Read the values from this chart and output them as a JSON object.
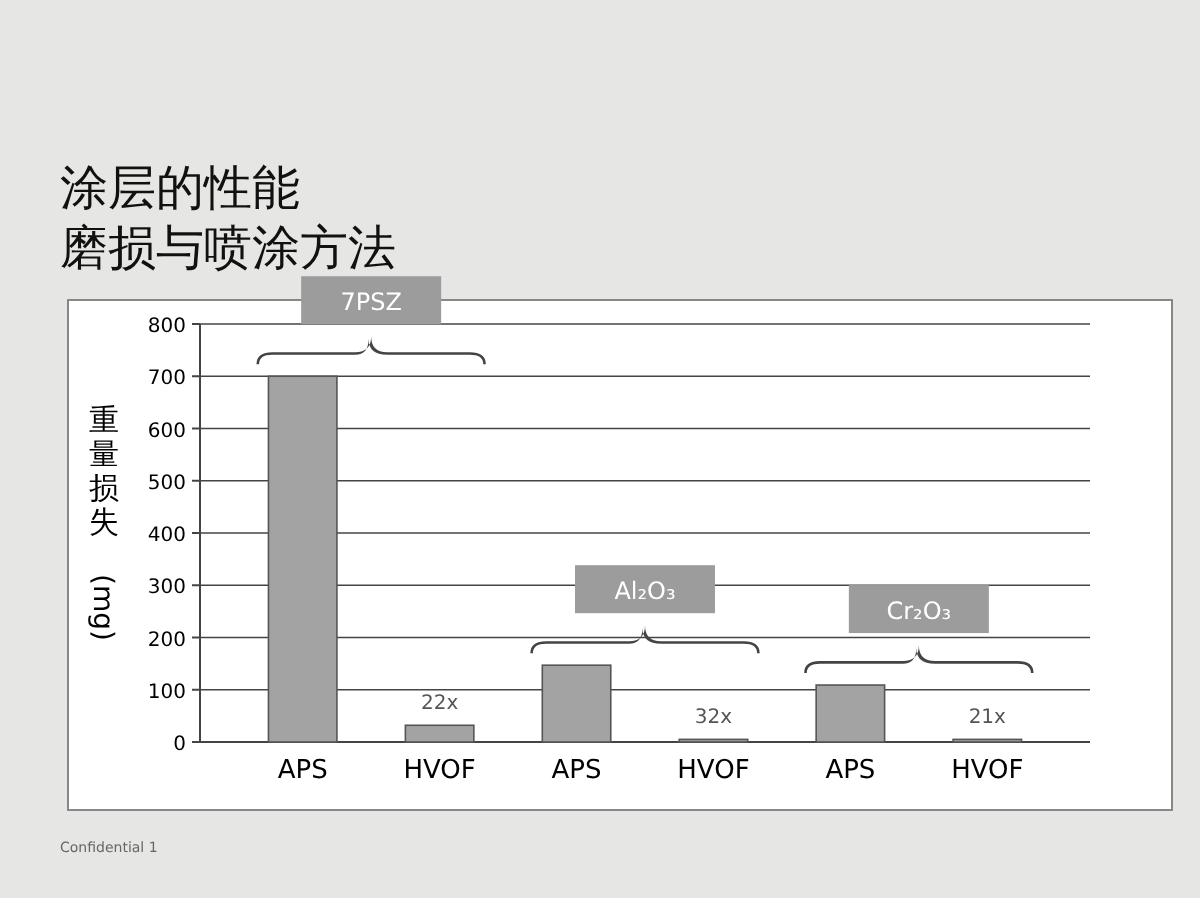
{
  "chart_data": {
    "type": "bar",
    "title": "涂层的性能",
    "subtitle": "磨损与喷涂方法",
    "ylabel": "重量损失 (mg)",
    "categories": [
      "APS",
      "HVOF",
      "APS",
      "HVOF",
      "APS",
      "HVOF"
    ],
    "values": [
      700,
      32,
      147,
      5,
      109,
      5
    ],
    "color": "#a3a3a3",
    "ylim": [
      0,
      800
    ],
    "yticks": [
      0,
      100,
      200,
      300,
      400,
      500,
      600,
      700,
      800
    ],
    "grid": "y",
    "annotations": [
      "7PSZ",
      "Al₂O₃",
      "Cr₂O₃",
      "22x",
      "32x",
      "21x",
      "Confidential 1"
    ]
  }
}
